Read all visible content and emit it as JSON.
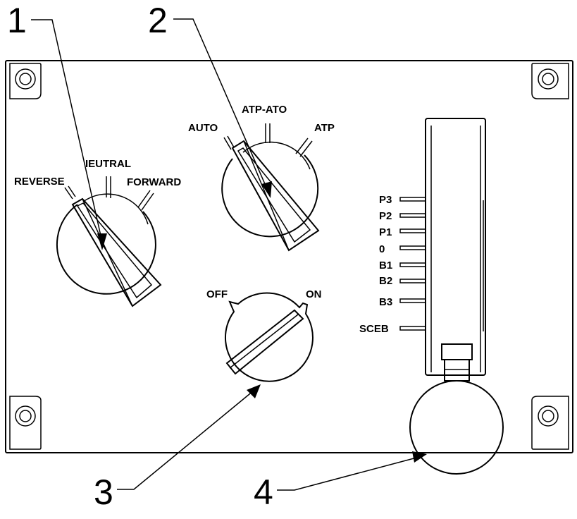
{
  "callouts": {
    "c1": "1",
    "c2": "2",
    "c3": "3",
    "c4": "4"
  },
  "direction_switch": {
    "reverse": "REVERSE",
    "neutral": "IEUTRAL",
    "forward": "FORWARD"
  },
  "mode_switch": {
    "auto": "AUTO",
    "atp_ato": "ATP-ATO",
    "atp": "ATP"
  },
  "power_switch": {
    "off": "OFF",
    "on": "ON"
  },
  "master_controller": {
    "positions": [
      "P3",
      "P2",
      "P1",
      "0",
      "B1",
      "B2",
      "B3",
      "SCEB"
    ]
  },
  "colors": {
    "line": "#000000",
    "background": "#ffffff"
  }
}
